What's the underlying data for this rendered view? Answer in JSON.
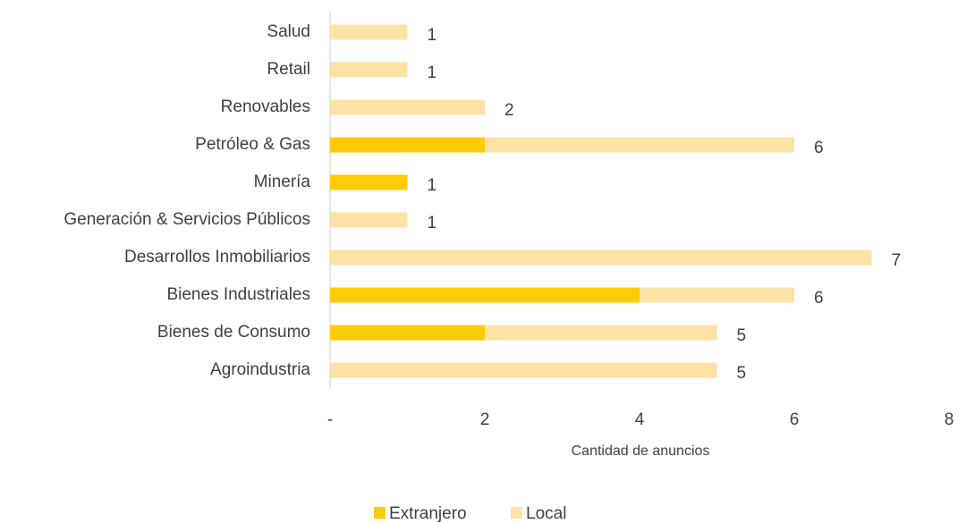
{
  "chart_data": {
    "type": "stacked_barh",
    "categories": [
      "Salud",
      "Retail",
      "Renovables",
      "Petróleo & Gas",
      "Minería",
      "Generación & Servicios Públicos",
      "Desarrollos Inmobiliarios",
      "Bienes Industriales",
      "Bienes de Consumo",
      "Agroindustria"
    ],
    "series": [
      {
        "name": "Extranjero",
        "color": "#fecb05",
        "values": [
          0,
          0,
          0,
          2,
          1,
          0,
          0,
          4,
          2,
          0
        ]
      },
      {
        "name": "Local",
        "color": "#fde2a6",
        "values": [
          1,
          1,
          2,
          4,
          0,
          1,
          7,
          2,
          3,
          5
        ]
      }
    ],
    "totals": [
      1,
      1,
      2,
      6,
      1,
      1,
      7,
      6,
      5,
      5
    ],
    "xlim": [
      0,
      8
    ],
    "xticks": [
      {
        "value": 0,
        "label": "-"
      },
      2,
      4,
      6,
      8
    ],
    "xlabel": "Cantidad de anuncios",
    "legend": "bottom"
  }
}
